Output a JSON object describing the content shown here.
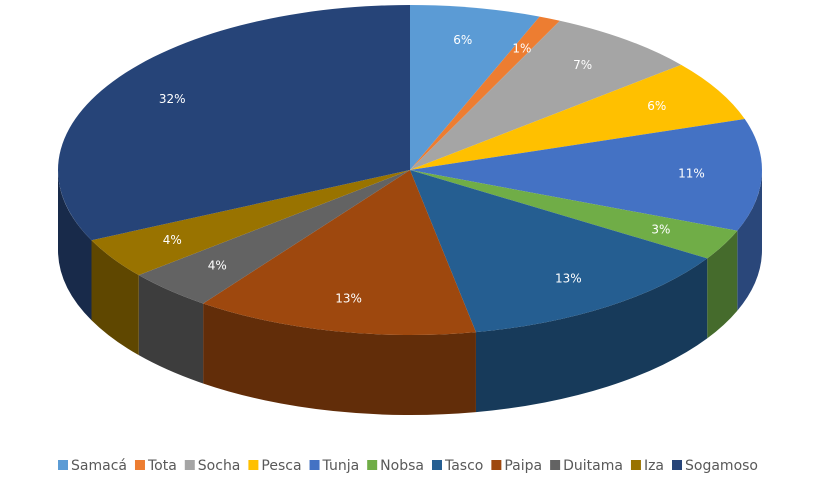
{
  "chart_data": {
    "type": "pie3d",
    "categories": [
      "Samacá",
      "Tota",
      "Socha",
      "Pesca",
      "Tunja",
      "Nobsa",
      "Tasco",
      "Paipa",
      "Duitama",
      "Iza",
      "Sogamoso"
    ],
    "values": [
      6,
      1,
      7,
      6,
      11,
      3,
      13,
      13,
      4,
      4,
      32
    ],
    "value_labels": [
      "6%",
      "1%",
      "7%",
      "6%",
      "11%",
      "3%",
      "13%",
      "13%",
      "4%",
      "4%",
      "32%"
    ],
    "colors": [
      "#5b9bd5",
      "#ed7d31",
      "#a5a5a5",
      "#ffc000",
      "#4472c4",
      "#70ad47",
      "#255e91",
      "#9e480e",
      "#636363",
      "#997300",
      "#264478"
    ],
    "legend": "bottom"
  }
}
